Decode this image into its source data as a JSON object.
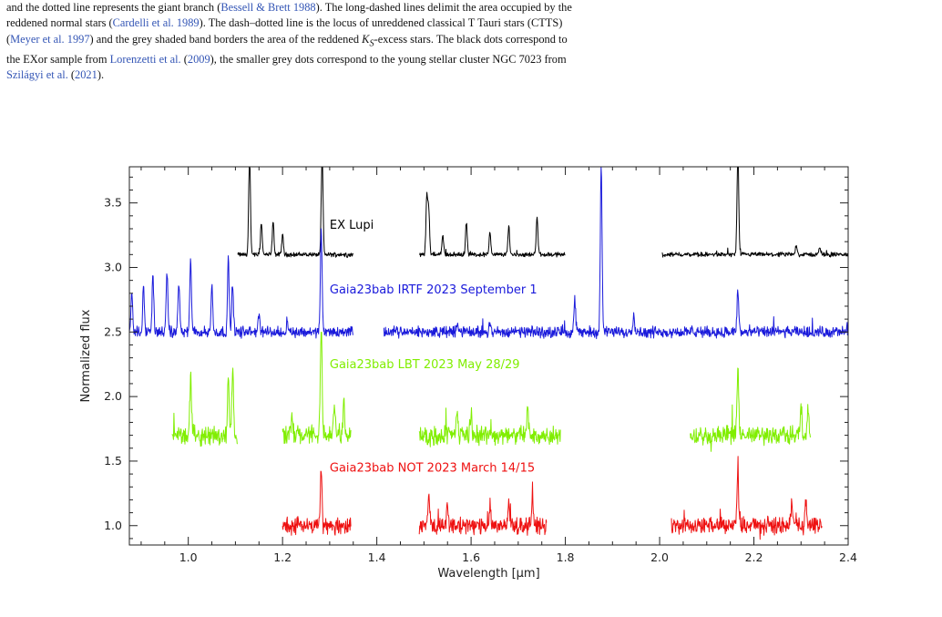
{
  "caption": {
    "l1a": "and the dotted line represents the giant branch (",
    "c1": "Bessell & Brett 1988",
    "l1b": "). The long-dashed lines delimit the area occupied by the",
    "l2a": "reddened normal stars (",
    "c2": "Cardelli et al. 1989",
    "l2b": "). The dash–dotted line is the locus of unreddened classical T Tauri stars (CTTS)",
    "l3a": "(",
    "c3": "Meyer et al. 1997",
    "l3b": ") and the grey shaded band borders the area of the reddened ",
    "math": "K",
    "math_sub": "S",
    "l3c": "-excess stars. The black dots correspond to",
    "l4a": "the EXor sample from ",
    "c4": "Lorenzetti et al.",
    "l4b": " (",
    "c4y": "2009",
    "l4c": "), the smaller grey dots correspond to the young stellar cluster NGC 7023 from",
    "c5": "Szilágyi et al.",
    "l5b": " (",
    "c5y": "2021",
    "l5c": ")."
  },
  "chart_data": {
    "type": "line",
    "xlabel": "Wavelength [μm]",
    "ylabel": "Normalized flux",
    "xlim": [
      0.875,
      2.4
    ],
    "ylim": [
      0.85,
      3.78
    ],
    "x_ticks": [
      1.0,
      1.2,
      1.4,
      1.6,
      1.8,
      2.0,
      2.2,
      2.4
    ],
    "x_tick_labels": [
      "1.0",
      "1.2",
      "1.4",
      "1.6",
      "1.8",
      "2.0",
      "2.2",
      "2.4"
    ],
    "y_ticks": [
      1.0,
      1.5,
      2.0,
      2.5,
      3.0,
      3.5
    ],
    "y_tick_labels": [
      "1.0",
      "1.5",
      "2.0",
      "2.5",
      "3.0",
      "3.5"
    ],
    "grid": false,
    "series": [
      {
        "name": "EX Lupi",
        "color": "#000000",
        "label_at": [
          1.3,
          3.3
        ],
        "noise": 0.012,
        "segments": [
          {
            "x": [
              1.105,
              1.35
            ],
            "level": 3.1
          },
          {
            "x": [
              1.49,
              1.8
            ],
            "level": 3.1
          },
          {
            "x": [
              2.005,
              2.4
            ],
            "level": 3.1
          }
        ],
        "lines": [
          [
            1.13,
            0.8
          ],
          [
            1.155,
            0.25
          ],
          [
            1.18,
            0.25
          ],
          [
            1.2,
            0.15
          ],
          [
            1.284,
            0.8
          ],
          [
            1.506,
            0.45
          ],
          [
            1.51,
            0.35
          ],
          [
            1.54,
            0.15
          ],
          [
            1.59,
            0.25
          ],
          [
            1.64,
            0.18
          ],
          [
            1.68,
            0.22
          ],
          [
            1.74,
            0.3
          ],
          [
            2.166,
            0.8
          ],
          [
            2.29,
            0.08
          ],
          [
            2.34,
            0.06
          ]
        ]
      },
      {
        "name": "Gaia23bab IRTF 2023 September 1",
        "color": "#1a1adb",
        "label_at": [
          1.3,
          2.8
        ],
        "noise": 0.03,
        "segments": [
          {
            "x": [
              0.875,
              1.35
            ],
            "level": 2.5
          },
          {
            "x": [
              1.415,
              2.4
            ],
            "level": 2.5
          }
        ],
        "lines": [
          [
            0.88,
            0.3
          ],
          [
            0.905,
            0.35
          ],
          [
            0.925,
            0.45
          ],
          [
            0.955,
            0.45
          ],
          [
            0.98,
            0.4
          ],
          [
            1.005,
            0.55
          ],
          [
            1.05,
            0.35
          ],
          [
            1.085,
            0.55
          ],
          [
            1.094,
            0.35
          ],
          [
            1.15,
            0.15
          ],
          [
            1.21,
            0.1
          ],
          [
            1.282,
            0.8
          ],
          [
            1.57,
            0.08
          ],
          [
            1.64,
            0.08
          ],
          [
            1.82,
            0.25
          ],
          [
            1.876,
            1.3
          ],
          [
            1.945,
            0.15
          ],
          [
            2.166,
            0.32
          ]
        ]
      },
      {
        "name": "Gaia23bab LBT 2023 May 28/29",
        "color": "#80ee00",
        "label_at": [
          1.3,
          2.22
        ],
        "noise": 0.05,
        "segments": [
          {
            "x": [
              0.965,
              1.105
            ],
            "level": 1.7
          },
          {
            "x": [
              1.2,
              1.345
            ],
            "level": 1.7
          },
          {
            "x": [
              1.49,
              1.79
            ],
            "level": 1.7
          },
          {
            "x": [
              2.065,
              2.32
            ],
            "level": 1.7
          }
        ],
        "lines": [
          [
            1.005,
            0.45
          ],
          [
            1.085,
            0.45
          ],
          [
            1.094,
            0.5
          ],
          [
            1.22,
            0.15
          ],
          [
            1.282,
            0.85
          ],
          [
            1.31,
            0.25
          ],
          [
            1.33,
            0.25
          ],
          [
            1.57,
            0.2
          ],
          [
            1.6,
            0.18
          ],
          [
            1.72,
            0.2
          ],
          [
            2.166,
            0.5
          ],
          [
            2.3,
            0.22
          ],
          [
            2.315,
            0.2
          ]
        ]
      },
      {
        "name": "Gaia23bab NOT 2023 March 14/15",
        "color": "#ee1111",
        "label_at": [
          1.3,
          1.42
        ],
        "noise": 0.045,
        "segments": [
          {
            "x": [
              1.2,
              1.345
            ],
            "level": 1.0
          },
          {
            "x": [
              1.49,
              1.76
            ],
            "level": 1.0
          },
          {
            "x": [
              2.025,
              2.345
            ],
            "level": 1.0
          }
        ],
        "lines": [
          [
            1.282,
            0.45
          ],
          [
            1.51,
            0.25
          ],
          [
            1.55,
            0.15
          ],
          [
            1.64,
            0.18
          ],
          [
            1.68,
            0.18
          ],
          [
            1.73,
            0.2
          ],
          [
            2.166,
            0.4
          ],
          [
            2.28,
            0.2
          ],
          [
            2.31,
            0.2
          ]
        ]
      }
    ]
  }
}
